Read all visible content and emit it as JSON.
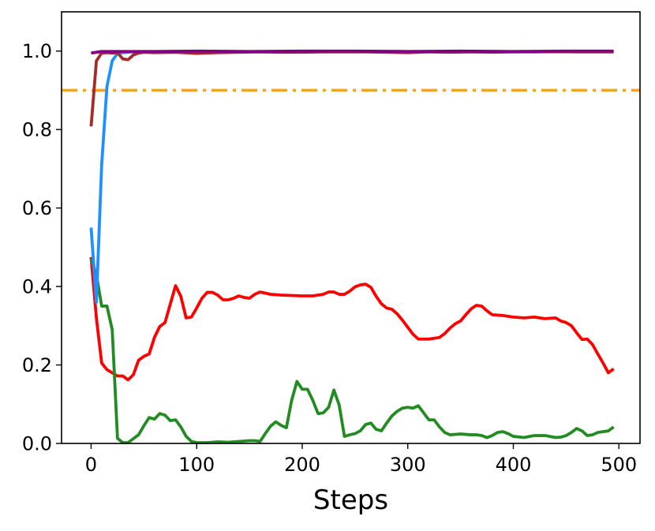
{
  "chart_data": {
    "type": "line",
    "xlabel": "Steps",
    "ylabel": "",
    "title": "",
    "xlim": [
      -28,
      520
    ],
    "ylim": [
      0.0,
      1.1
    ],
    "x_ticks": [
      0,
      100,
      200,
      300,
      400,
      500
    ],
    "y_ticks": [
      0.0,
      0.2,
      0.4,
      0.6,
      0.8,
      1.0
    ],
    "x_tick_labels": [
      "0",
      "100",
      "200",
      "300",
      "400",
      "500"
    ],
    "y_tick_labels": [
      "0.0",
      "0.2",
      "0.4",
      "0.6",
      "0.8",
      "1.0"
    ],
    "grid": false,
    "reference_line": {
      "y": 0.9,
      "color": "#FFA500",
      "style": "dashdot"
    },
    "series": [
      {
        "color": "#FF0000",
        "points": [
          [
            0,
            0.475
          ],
          [
            5,
            0.32
          ],
          [
            10,
            0.205
          ],
          [
            15,
            0.188
          ],
          [
            20,
            0.18
          ],
          [
            25,
            0.172
          ],
          [
            30,
            0.172
          ],
          [
            35,
            0.162
          ],
          [
            40,
            0.175
          ],
          [
            45,
            0.212
          ],
          [
            50,
            0.222
          ],
          [
            55,
            0.228
          ],
          [
            60,
            0.27
          ],
          [
            65,
            0.298
          ],
          [
            70,
            0.308
          ],
          [
            75,
            0.355
          ],
          [
            80,
            0.402
          ],
          [
            85,
            0.375
          ],
          [
            90,
            0.32
          ],
          [
            95,
            0.322
          ],
          [
            100,
            0.345
          ],
          [
            105,
            0.37
          ],
          [
            110,
            0.385
          ],
          [
            115,
            0.385
          ],
          [
            120,
            0.378
          ],
          [
            125,
            0.366
          ],
          [
            130,
            0.366
          ],
          [
            135,
            0.37
          ],
          [
            140,
            0.376
          ],
          [
            145,
            0.372
          ],
          [
            150,
            0.37
          ],
          [
            155,
            0.38
          ],
          [
            160,
            0.386
          ],
          [
            165,
            0.383
          ],
          [
            170,
            0.38
          ],
          [
            180,
            0.378
          ],
          [
            190,
            0.377
          ],
          [
            200,
            0.376
          ],
          [
            210,
            0.376
          ],
          [
            220,
            0.38
          ],
          [
            225,
            0.386
          ],
          [
            230,
            0.386
          ],
          [
            235,
            0.38
          ],
          [
            240,
            0.38
          ],
          [
            245,
            0.388
          ],
          [
            250,
            0.399
          ],
          [
            255,
            0.404
          ],
          [
            260,
            0.406
          ],
          [
            265,
            0.398
          ],
          [
            270,
            0.375
          ],
          [
            275,
            0.356
          ],
          [
            280,
            0.345
          ],
          [
            285,
            0.342
          ],
          [
            290,
            0.33
          ],
          [
            295,
            0.314
          ],
          [
            300,
            0.296
          ],
          [
            305,
            0.278
          ],
          [
            310,
            0.266
          ],
          [
            320,
            0.266
          ],
          [
            330,
            0.27
          ],
          [
            335,
            0.28
          ],
          [
            340,
            0.294
          ],
          [
            345,
            0.305
          ],
          [
            350,
            0.312
          ],
          [
            355,
            0.328
          ],
          [
            360,
            0.343
          ],
          [
            365,
            0.352
          ],
          [
            370,
            0.35
          ],
          [
            375,
            0.338
          ],
          [
            380,
            0.328
          ],
          [
            390,
            0.326
          ],
          [
            400,
            0.322
          ],
          [
            410,
            0.32
          ],
          [
            420,
            0.322
          ],
          [
            430,
            0.318
          ],
          [
            440,
            0.32
          ],
          [
            445,
            0.312
          ],
          [
            450,
            0.308
          ],
          [
            455,
            0.3
          ],
          [
            460,
            0.282
          ],
          [
            465,
            0.265
          ],
          [
            470,
            0.266
          ],
          [
            475,
            0.252
          ],
          [
            480,
            0.228
          ],
          [
            485,
            0.205
          ],
          [
            490,
            0.18
          ],
          [
            495,
            0.19
          ]
        ]
      },
      {
        "color": "#228B22",
        "points": [
          [
            0,
            0.47
          ],
          [
            5,
            0.43
          ],
          [
            10,
            0.35
          ],
          [
            15,
            0.35
          ],
          [
            20,
            0.29
          ],
          [
            25,
            0.013
          ],
          [
            30,
            0.002
          ],
          [
            35,
            0.002
          ],
          [
            40,
            0.012
          ],
          [
            45,
            0.022
          ],
          [
            50,
            0.045
          ],
          [
            55,
            0.066
          ],
          [
            60,
            0.062
          ],
          [
            65,
            0.076
          ],
          [
            70,
            0.072
          ],
          [
            75,
            0.058
          ],
          [
            80,
            0.06
          ],
          [
            85,
            0.042
          ],
          [
            90,
            0.018
          ],
          [
            95,
            0.005
          ],
          [
            100,
            0.002
          ],
          [
            110,
            0.002
          ],
          [
            120,
            0.004
          ],
          [
            130,
            0.003
          ],
          [
            140,
            0.005
          ],
          [
            150,
            0.007
          ],
          [
            155,
            0.007
          ],
          [
            160,
            0.005
          ],
          [
            165,
            0.025
          ],
          [
            170,
            0.044
          ],
          [
            175,
            0.055
          ],
          [
            180,
            0.046
          ],
          [
            185,
            0.04
          ],
          [
            190,
            0.11
          ],
          [
            195,
            0.158
          ],
          [
            200,
            0.138
          ],
          [
            205,
            0.138
          ],
          [
            210,
            0.11
          ],
          [
            215,
            0.076
          ],
          [
            220,
            0.078
          ],
          [
            225,
            0.092
          ],
          [
            230,
            0.136
          ],
          [
            235,
            0.098
          ],
          [
            240,
            0.018
          ],
          [
            245,
            0.022
          ],
          [
            250,
            0.025
          ],
          [
            255,
            0.032
          ],
          [
            260,
            0.048
          ],
          [
            265,
            0.052
          ],
          [
            270,
            0.036
          ],
          [
            275,
            0.032
          ],
          [
            280,
            0.052
          ],
          [
            285,
            0.07
          ],
          [
            290,
            0.082
          ],
          [
            295,
            0.09
          ],
          [
            300,
            0.092
          ],
          [
            305,
            0.09
          ],
          [
            310,
            0.096
          ],
          [
            315,
            0.078
          ],
          [
            320,
            0.06
          ],
          [
            325,
            0.06
          ],
          [
            330,
            0.042
          ],
          [
            335,
            0.028
          ],
          [
            340,
            0.022
          ],
          [
            350,
            0.024
          ],
          [
            360,
            0.022
          ],
          [
            365,
            0.022
          ],
          [
            370,
            0.02
          ],
          [
            375,
            0.015
          ],
          [
            380,
            0.02
          ],
          [
            385,
            0.028
          ],
          [
            390,
            0.03
          ],
          [
            395,
            0.025
          ],
          [
            400,
            0.018
          ],
          [
            410,
            0.015
          ],
          [
            420,
            0.02
          ],
          [
            430,
            0.02
          ],
          [
            440,
            0.015
          ],
          [
            445,
            0.016
          ],
          [
            450,
            0.02
          ],
          [
            455,
            0.028
          ],
          [
            460,
            0.038
          ],
          [
            465,
            0.032
          ],
          [
            470,
            0.02
          ],
          [
            475,
            0.022
          ],
          [
            480,
            0.028
          ],
          [
            490,
            0.032
          ],
          [
            495,
            0.042
          ]
        ]
      },
      {
        "color": "#1E90FF",
        "points": [
          [
            0,
            0.55
          ],
          [
            5,
            0.36
          ],
          [
            10,
            0.71
          ],
          [
            15,
            0.91
          ],
          [
            20,
            0.975
          ],
          [
            25,
            0.994
          ],
          [
            30,
            0.996
          ],
          [
            40,
            0.998
          ],
          [
            60,
            0.998
          ],
          [
            100,
            0.998
          ],
          [
            200,
            0.998
          ],
          [
            300,
            0.998
          ],
          [
            400,
            0.998
          ],
          [
            495,
            0.998
          ]
        ]
      },
      {
        "color": "#A52A2A",
        "points": [
          [
            0,
            0.808
          ],
          [
            5,
            0.975
          ],
          [
            10,
            0.995
          ],
          [
            15,
            0.996
          ],
          [
            20,
            0.995
          ],
          [
            25,
            0.996
          ],
          [
            30,
            0.98
          ],
          [
            35,
            0.978
          ],
          [
            40,
            0.99
          ],
          [
            45,
            0.995
          ],
          [
            50,
            0.997
          ],
          [
            60,
            0.996
          ],
          [
            80,
            0.997
          ],
          [
            100,
            0.994
          ],
          [
            120,
            0.996
          ],
          [
            140,
            0.997
          ],
          [
            160,
            0.998
          ],
          [
            180,
            0.997
          ],
          [
            200,
            0.997
          ],
          [
            220,
            0.998
          ],
          [
            240,
            0.998
          ],
          [
            260,
            0.998
          ],
          [
            280,
            0.997
          ],
          [
            300,
            0.996
          ],
          [
            320,
            0.998
          ],
          [
            340,
            0.997
          ],
          [
            360,
            0.998
          ],
          [
            380,
            0.997
          ],
          [
            400,
            0.998
          ],
          [
            420,
            0.998
          ],
          [
            440,
            0.999
          ],
          [
            460,
            0.998
          ],
          [
            480,
            0.998
          ],
          [
            495,
            0.998
          ]
        ]
      },
      {
        "color": "#800080",
        "points": [
          [
            0,
            0.995
          ],
          [
            10,
            0.999
          ],
          [
            30,
            0.999
          ],
          [
            60,
            0.999
          ],
          [
            100,
            1.0
          ],
          [
            150,
            0.999
          ],
          [
            200,
            1.0
          ],
          [
            250,
            1.0
          ],
          [
            300,
            0.999
          ],
          [
            350,
            1.0
          ],
          [
            400,
            0.999
          ],
          [
            450,
            1.0
          ],
          [
            495,
            1.0
          ]
        ]
      }
    ]
  }
}
